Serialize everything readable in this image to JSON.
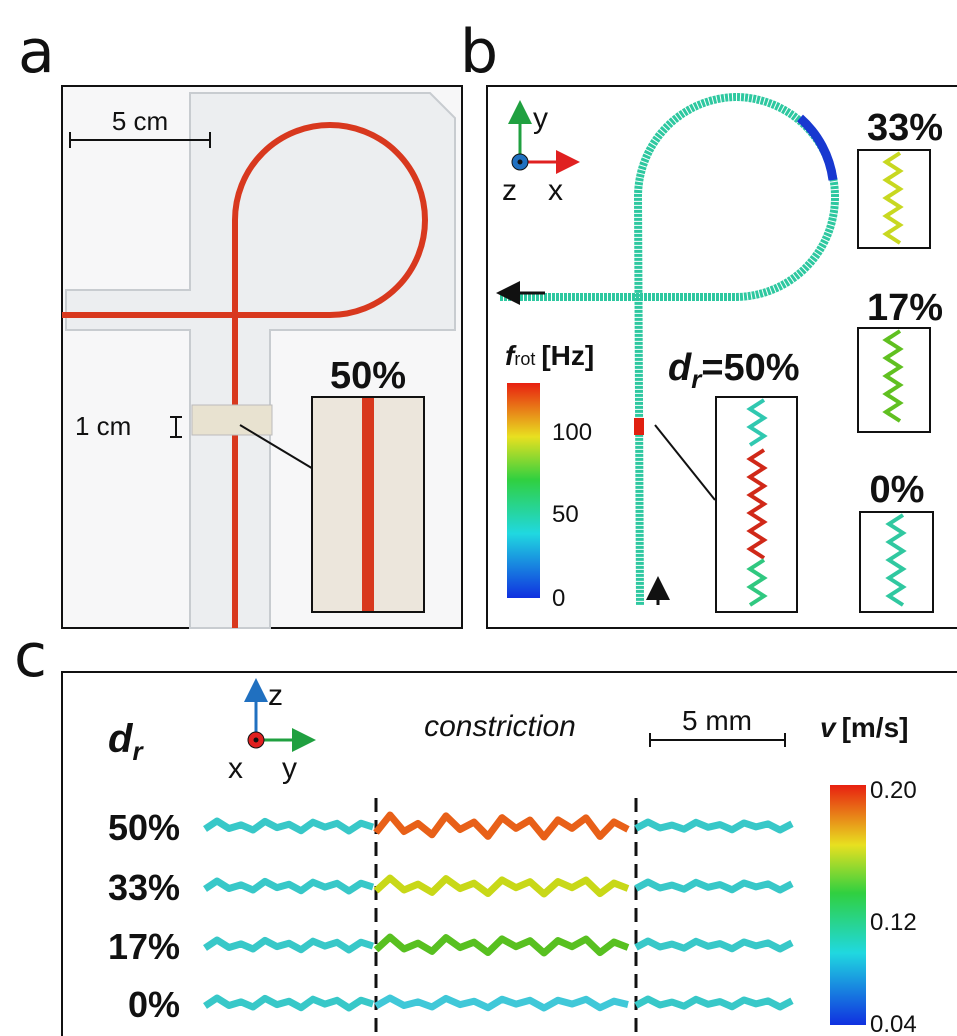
{
  "panel_a": {
    "label": "a",
    "scale_bar": "5 cm",
    "scale_bar_small": "1 cm",
    "inset_label": "50%"
  },
  "panel_b": {
    "label": "b",
    "axes": {
      "y": "y",
      "z": "z",
      "x": "x"
    },
    "colorbar": {
      "symbol": "f",
      "subscript": "rot",
      "unit": "[Hz]",
      "ticks": [
        "100",
        "50",
        "0"
      ]
    },
    "inset": {
      "symbol": "d",
      "subscript": "r",
      "value": "=50%"
    },
    "side_insets": [
      "33%",
      "17%",
      "0%"
    ]
  },
  "panel_c": {
    "label": "c",
    "row_header": {
      "symbol": "d",
      "subscript": "r"
    },
    "axes": {
      "z": "z",
      "x": "x",
      "y": "y"
    },
    "annotation": "constriction",
    "scale_bar": "5 mm",
    "colorbar": {
      "symbol": "v",
      "unit": "[m/s]",
      "ticks": [
        "0.20",
        "0.12",
        "0.04"
      ]
    },
    "rows": [
      "50%",
      "33%",
      "17%",
      "0%"
    ]
  }
}
